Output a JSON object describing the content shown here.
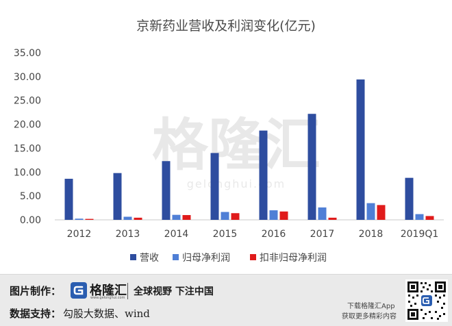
{
  "watermark": {
    "text": "格隆汇",
    "url": "gelonghui.com"
  },
  "footer": {
    "made_by_label": "图片制作：",
    "brand_name": "格隆汇",
    "brand_url": "www.gelonghui.com",
    "slogan": "全球视野 下注中国",
    "data_source_label": "数据支持：",
    "data_source_value": "勾股大数据、wind",
    "download_text": "下载格隆汇App",
    "more_text": "获取更多精彩内容"
  },
  "colors": {
    "revenue": "#2e4d9f",
    "net_profit": "#4f7fd6",
    "adjusted_net_profit": "#e01b1b",
    "footer_bg": "#eaeaea",
    "brand_blue": "#2a5db0"
  },
  "chart_data": {
    "type": "bar",
    "title": "京新药业营收及利润变化(亿元)",
    "categories": [
      "2012",
      "2013",
      "2014",
      "2015",
      "2016",
      "2017",
      "2018",
      "2019Q1"
    ],
    "series": [
      {
        "name": "营收",
        "color": "#2e4d9f",
        "values": [
          8.6,
          9.8,
          12.3,
          14.0,
          18.7,
          22.2,
          29.4,
          8.8
        ]
      },
      {
        "name": "归母净利润",
        "color": "#4f7fd6",
        "values": [
          0.25,
          0.65,
          1.05,
          1.65,
          2.0,
          2.6,
          3.5,
          1.2
        ]
      },
      {
        "name": "扣非归母净利润",
        "color": "#e01b1b",
        "values": [
          0.2,
          0.45,
          1.0,
          1.4,
          1.75,
          0.45,
          3.1,
          0.8
        ]
      }
    ],
    "yticks": [
      "0.00",
      "5.00",
      "10.00",
      "15.00",
      "20.00",
      "25.00",
      "30.00",
      "35.00"
    ],
    "ylim": [
      0,
      35
    ],
    "grid": false,
    "legend_position": "bottom"
  }
}
